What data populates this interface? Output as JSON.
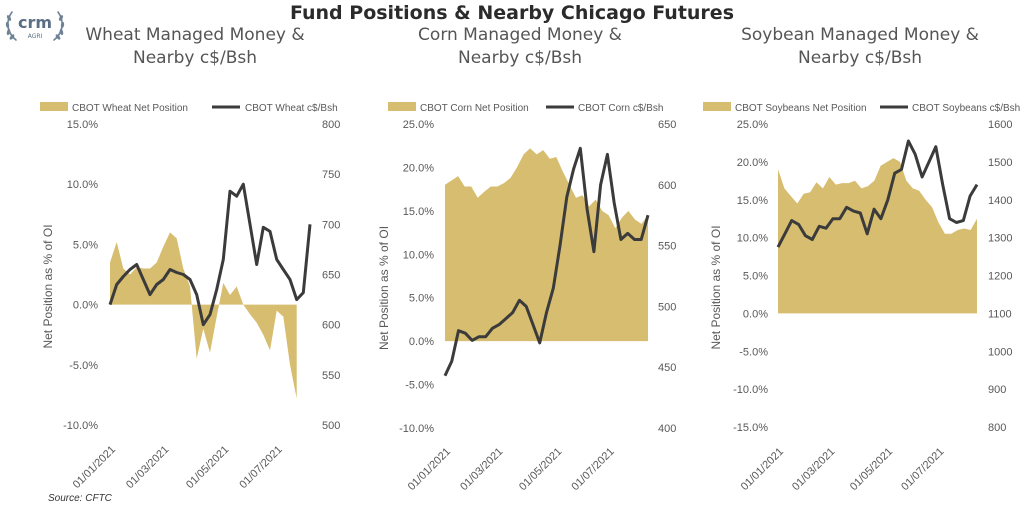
{
  "title": "Fund Positions & Nearby Chicago Futures",
  "logo": {
    "brand": "crm",
    "sub": "AGRI"
  },
  "source": "Source: CFTC",
  "colors": {
    "area": "#d7bd6f",
    "line": "#3b3b3b",
    "axis_text": "#595959"
  },
  "chart_data": [
    {
      "type": "area+line",
      "title_lines": [
        "Wheat Managed Money &",
        "Nearby c$/Bsh"
      ],
      "legend": [
        "CBOT Wheat Net Position",
        "CBOT Wheat c$/Bsh"
      ],
      "ylabel": "Net Position as % of OI",
      "y_left": {
        "min": -10,
        "max": 15,
        "step": 5,
        "ticks": [
          "-10.0%",
          "-5.0%",
          "0.0%",
          "5.0%",
          "10.0%",
          "15.0%"
        ]
      },
      "y_right": {
        "min": 500,
        "max": 800,
        "step": 50,
        "ticks": [
          "500",
          "550",
          "600",
          "650",
          "700",
          "750",
          "800"
        ]
      },
      "x_ticks": [
        "01/01/2021",
        "01/03/2021",
        "01/05/2021",
        "01/07/2021"
      ],
      "x_tick_weeks": [
        0,
        8,
        17,
        25
      ],
      "series_area": [
        3.5,
        5.2,
        3.0,
        2.5,
        3.1,
        3.0,
        3.0,
        3.5,
        4.8,
        6.0,
        5.5,
        3.0,
        1.5,
        -4.5,
        -2.0,
        -4.0,
        -1.0,
        1.8,
        0.8,
        1.5,
        0.0,
        -0.8,
        -1.5,
        -2.5,
        -3.8,
        -0.5,
        -1.0,
        -5.0,
        -7.8
      ],
      "series_line": [
        620,
        640,
        648,
        655,
        660,
        645,
        630,
        640,
        645,
        655,
        652,
        650,
        645,
        630,
        600,
        610,
        635,
        665,
        733,
        728,
        740,
        700,
        660,
        697,
        693,
        665,
        655,
        645,
        625,
        632,
        700
      ]
    },
    {
      "type": "area+line",
      "title_lines": [
        "Corn Managed Money &",
        "Nearby c$/Bsh"
      ],
      "legend": [
        "CBOT Corn Net Position",
        "CBOT Corn c$/Bsh"
      ],
      "ylabel": "Net Position as % of OI",
      "y_left": {
        "min": -10,
        "max": 25,
        "step": 5,
        "ticks": [
          "-10.0%",
          "-5.0%",
          "0.0%",
          "5.0%",
          "10.0%",
          "15.0%",
          "20.0%",
          "25.0%"
        ]
      },
      "y_right": {
        "min": 400,
        "max": 650,
        "step": 50,
        "ticks": [
          "400",
          "450",
          "500",
          "550",
          "600",
          "650"
        ]
      },
      "x_ticks": [
        "01/01/2021",
        "01/03/2021",
        "01/05/2021",
        "01/07/2021"
      ],
      "x_tick_weeks": [
        0,
        8,
        17,
        25
      ],
      "series_area": [
        18.0,
        18.5,
        19.0,
        17.8,
        17.8,
        16.5,
        17.2,
        17.8,
        17.8,
        18.2,
        18.8,
        20.0,
        21.5,
        22.2,
        21.5,
        22.0,
        21.0,
        21.2,
        19.5,
        18.0,
        16.5,
        16.8,
        15.5,
        16.3,
        15.0,
        14.5,
        13.0,
        14.2,
        15.0,
        14.0,
        13.5,
        14.5
      ],
      "series_line": [
        443,
        455,
        480,
        478,
        472,
        475,
        475,
        482,
        485,
        490,
        495,
        505,
        500,
        485,
        470,
        495,
        515,
        550,
        590,
        613,
        630,
        580,
        545,
        600,
        625,
        585,
        555,
        560,
        555,
        555,
        575
      ]
    },
    {
      "type": "area+line",
      "title_lines": [
        "Soybean Managed Money &",
        "Nearby c$/Bsh"
      ],
      "legend": [
        "CBOT Soybeans Net Position",
        "CBOT Soybeans c$/Bsh"
      ],
      "ylabel": "Net Position as % of OI",
      "y_left": {
        "min": -15,
        "max": 25,
        "step": 5,
        "ticks": [
          "-15.0%",
          "-10.0%",
          "-5.0%",
          "0.0%",
          "5.0%",
          "10.0%",
          "15.0%",
          "20.0%",
          "25.0%"
        ]
      },
      "y_right": {
        "min": 800,
        "max": 1600,
        "step": 100,
        "ticks": [
          "800",
          "900",
          "1000",
          "1100",
          "1200",
          "1300",
          "1400",
          "1500",
          "1600"
        ]
      },
      "x_ticks": [
        "01/01/2021",
        "01/03/2021",
        "01/05/2021",
        "01/07/2021"
      ],
      "x_tick_weeks": [
        0,
        8,
        17,
        25
      ],
      "series_area": [
        19.0,
        16.5,
        15.5,
        14.5,
        15.8,
        16.0,
        17.3,
        16.5,
        18.0,
        17.0,
        17.2,
        17.2,
        17.5,
        16.5,
        16.8,
        17.5,
        19.5,
        20.0,
        20.5,
        20.0,
        17.5,
        16.5,
        16.2,
        15.0,
        14.0,
        12.0,
        10.5,
        10.5,
        11.0,
        11.2,
        11.0,
        12.5
      ],
      "series_line": [
        1275,
        1310,
        1345,
        1335,
        1305,
        1295,
        1330,
        1325,
        1350,
        1350,
        1380,
        1370,
        1365,
        1310,
        1375,
        1350,
        1400,
        1470,
        1480,
        1555,
        1520,
        1460,
        1500,
        1540,
        1440,
        1350,
        1340,
        1345,
        1410,
        1440
      ]
    }
  ]
}
